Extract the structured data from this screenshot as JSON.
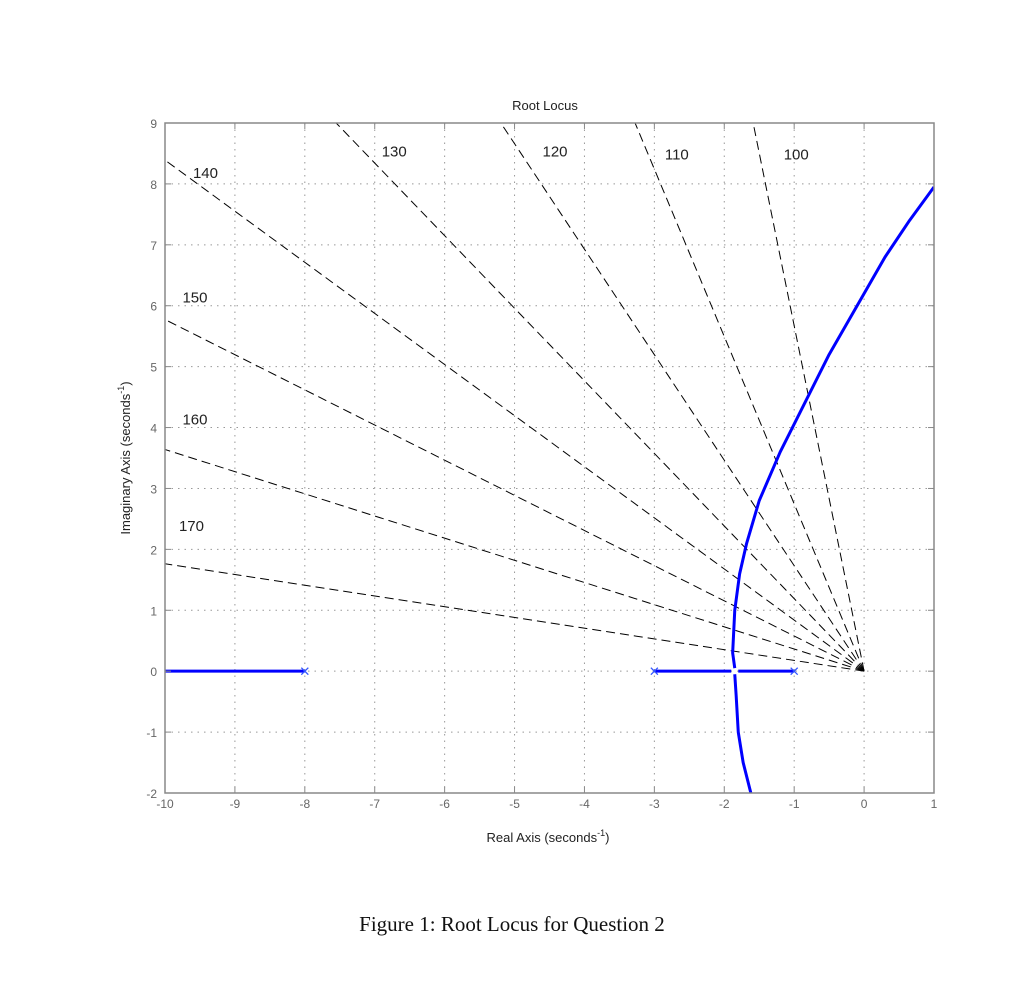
{
  "figure": {
    "caption": "Figure 1: Root Locus for Question 2"
  },
  "chart_data": {
    "type": "line",
    "title": "Root Locus",
    "xlabel": "Real Axis (seconds⁻¹)",
    "ylabel": "Imaginary Axis (seconds⁻¹)",
    "xlim": [
      -10,
      1
    ],
    "ylim": [
      -2,
      9
    ],
    "xticks": [
      -10,
      -9,
      -8,
      -7,
      -6,
      -5,
      -4,
      -3,
      -2,
      -1,
      0,
      1
    ],
    "yticks": [
      -2,
      -1,
      0,
      1,
      2,
      3,
      4,
      5,
      6,
      7,
      8,
      9
    ],
    "grid": true,
    "grid_style": "dotted",
    "poles": [
      {
        "re": -8,
        "im": 0
      },
      {
        "re": -3,
        "im": 0
      },
      {
        "re": -1,
        "im": 0
      }
    ],
    "pole_marker": "x",
    "series": [
      {
        "name": "locus-branch-real-left",
        "color": "#0000ff",
        "points": [
          [
            -10,
            0
          ],
          [
            -8,
            0
          ]
        ]
      },
      {
        "name": "locus-branch-real-mid",
        "color": "#0000ff",
        "points": [
          [
            -3,
            0
          ],
          [
            -1.9,
            0
          ]
        ]
      },
      {
        "name": "locus-branch-real-right",
        "color": "#0000ff",
        "points": [
          [
            -1.8,
            0
          ],
          [
            -1,
            0
          ]
        ]
      },
      {
        "name": "locus-branch-upper",
        "color": "#0000ff",
        "points": [
          [
            -1.85,
            0.05
          ],
          [
            -1.88,
            0.3
          ],
          [
            -1.85,
            1.0
          ],
          [
            -1.78,
            1.6
          ],
          [
            -1.68,
            2.1
          ],
          [
            -1.5,
            2.8
          ],
          [
            -1.2,
            3.6
          ],
          [
            -0.85,
            4.4
          ],
          [
            -0.5,
            5.2
          ],
          [
            -0.1,
            6.0
          ],
          [
            0.3,
            6.8
          ],
          [
            0.65,
            7.4
          ],
          [
            1.0,
            7.95
          ]
        ]
      },
      {
        "name": "locus-branch-lower",
        "color": "#0000ff",
        "points": [
          [
            -1.85,
            -0.05
          ],
          [
            -1.83,
            -0.4
          ],
          [
            -1.8,
            -1.0
          ],
          [
            -1.73,
            -1.5
          ],
          [
            -1.62,
            -2.0
          ]
        ]
      }
    ],
    "damping_lines": [
      {
        "label": "100",
        "angle_deg": 100,
        "label_pos": [
          -1.15,
          8.4
        ]
      },
      {
        "label": "110",
        "angle_deg": 110,
        "label_pos": [
          -2.85,
          8.4
        ]
      },
      {
        "label": "120",
        "angle_deg": 120,
        "label_pos": [
          -4.6,
          8.45
        ]
      },
      {
        "label": "130",
        "angle_deg": 130,
        "label_pos": [
          -6.9,
          8.45
        ]
      },
      {
        "label": "140",
        "angle_deg": 140,
        "label_pos": [
          -9.6,
          8.1
        ]
      },
      {
        "label": "150",
        "angle_deg": 150,
        "label_pos": [
          -9.75,
          6.05
        ]
      },
      {
        "label": "160",
        "angle_deg": 160,
        "label_pos": [
          -9.75,
          4.05
        ]
      },
      {
        "label": "170",
        "angle_deg": 170,
        "label_pos": [
          -9.8,
          2.3
        ]
      }
    ],
    "damping_line_style": "dashed",
    "damping_line_color": "#000000"
  }
}
